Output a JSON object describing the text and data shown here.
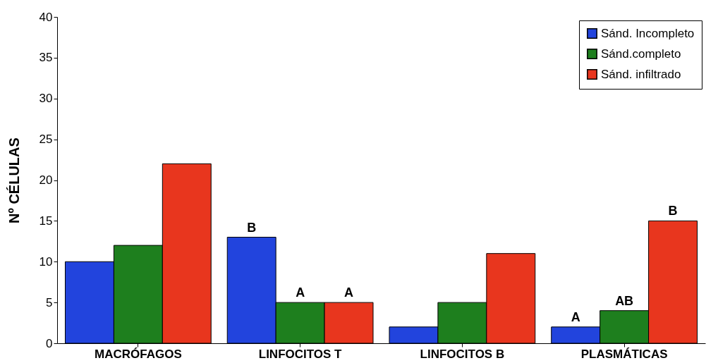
{
  "chart_data": {
    "type": "bar",
    "ylabel": "Nº CÉLULAS",
    "categories": [
      "MACRÓFAGOS",
      "LINFOCITOS T",
      "LINFOCITOS B",
      "PLASMÁTICAS"
    ],
    "series": [
      {
        "name": "Sánd. Incompleto",
        "color": "#2244dd",
        "values": [
          10,
          13,
          2,
          2
        ],
        "value_labels": [
          null,
          "B",
          null,
          "A"
        ]
      },
      {
        "name": "Sánd.completo",
        "color": "#1e7f1e",
        "values": [
          12,
          5,
          5,
          4
        ],
        "value_labels": [
          null,
          "A",
          null,
          "AB"
        ]
      },
      {
        "name": "Sánd. infiltrado",
        "color": "#e8361e",
        "values": [
          22,
          5,
          11,
          15
        ],
        "value_labels": [
          null,
          "A",
          null,
          "B"
        ]
      }
    ],
    "ylim": [
      0,
      40
    ],
    "yticks": [
      0,
      5,
      10,
      15,
      20,
      25,
      30,
      35,
      40
    ],
    "grid": false,
    "legend": "top right"
  }
}
